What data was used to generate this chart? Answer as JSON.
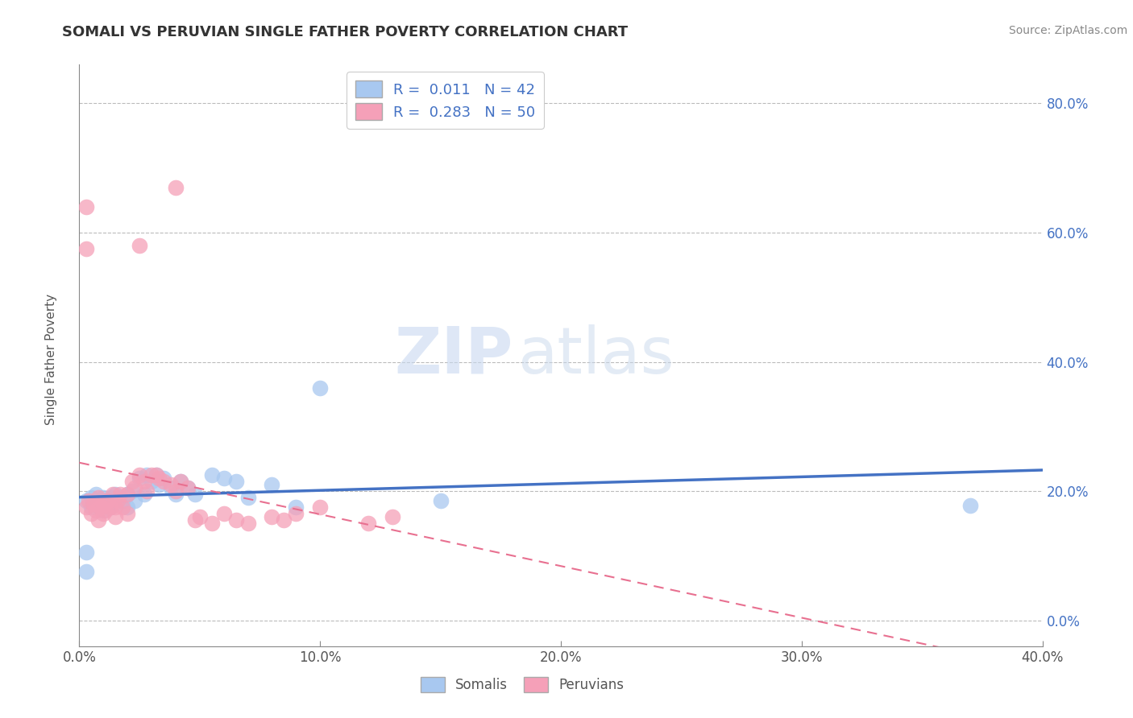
{
  "title": "SOMALI VS PERUVIAN SINGLE FATHER POVERTY CORRELATION CHART",
  "source": "Source: ZipAtlas.com",
  "ylabel": "Single Father Poverty",
  "xlim": [
    0.0,
    0.4
  ],
  "ylim": [
    -0.04,
    0.86
  ],
  "ytick_values": [
    0.0,
    0.2,
    0.4,
    0.6,
    0.8
  ],
  "ytick_labels": [
    "0.0%",
    "20.0%",
    "40.0%",
    "60.0%",
    "80.0%"
  ],
  "xtick_values": [
    0.0,
    0.1,
    0.2,
    0.3,
    0.4
  ],
  "xtick_labels": [
    "0.0%",
    "10.0%",
    "20.0%",
    "30.0%",
    "40.0%"
  ],
  "somali_R": "0.011",
  "somali_N": "42",
  "peruvian_R": "0.283",
  "peruvian_N": "50",
  "somali_color": "#a8c8f0",
  "peruvian_color": "#f5a0b8",
  "somali_line_color": "#4472c4",
  "peruvian_line_color": "#e87090",
  "grid_color": "#bbbbbb",
  "background_color": "#ffffff",
  "watermark_zip": "ZIP",
  "watermark_atlas": "atlas",
  "ytick_color": "#4472c4",
  "xtick_color": "#555555",
  "somali_scatter": [
    [
      0.003,
      0.185
    ],
    [
      0.005,
      0.19
    ],
    [
      0.005,
      0.175
    ],
    [
      0.007,
      0.195
    ],
    [
      0.008,
      0.18
    ],
    [
      0.009,
      0.185
    ],
    [
      0.01,
      0.19
    ],
    [
      0.01,
      0.17
    ],
    [
      0.012,
      0.185
    ],
    [
      0.013,
      0.19
    ],
    [
      0.013,
      0.175
    ],
    [
      0.015,
      0.195
    ],
    [
      0.015,
      0.18
    ],
    [
      0.017,
      0.19
    ],
    [
      0.018,
      0.185
    ],
    [
      0.02,
      0.195
    ],
    [
      0.02,
      0.175
    ],
    [
      0.022,
      0.2
    ],
    [
      0.023,
      0.185
    ],
    [
      0.025,
      0.22
    ],
    [
      0.027,
      0.195
    ],
    [
      0.028,
      0.225
    ],
    [
      0.03,
      0.215
    ],
    [
      0.032,
      0.225
    ],
    [
      0.033,
      0.21
    ],
    [
      0.035,
      0.22
    ],
    [
      0.038,
      0.205
    ],
    [
      0.04,
      0.195
    ],
    [
      0.042,
      0.215
    ],
    [
      0.045,
      0.205
    ],
    [
      0.048,
      0.195
    ],
    [
      0.055,
      0.225
    ],
    [
      0.06,
      0.22
    ],
    [
      0.065,
      0.215
    ],
    [
      0.07,
      0.19
    ],
    [
      0.09,
      0.175
    ],
    [
      0.1,
      0.36
    ],
    [
      0.15,
      0.185
    ],
    [
      0.003,
      0.105
    ],
    [
      0.003,
      0.075
    ],
    [
      0.37,
      0.178
    ],
    [
      0.08,
      0.21
    ]
  ],
  "peruvian_scatter": [
    [
      0.003,
      0.175
    ],
    [
      0.004,
      0.185
    ],
    [
      0.005,
      0.165
    ],
    [
      0.006,
      0.18
    ],
    [
      0.007,
      0.17
    ],
    [
      0.008,
      0.19
    ],
    [
      0.008,
      0.155
    ],
    [
      0.009,
      0.175
    ],
    [
      0.01,
      0.165
    ],
    [
      0.01,
      0.18
    ],
    [
      0.011,
      0.17
    ],
    [
      0.012,
      0.185
    ],
    [
      0.013,
      0.175
    ],
    [
      0.014,
      0.195
    ],
    [
      0.015,
      0.175
    ],
    [
      0.015,
      0.16
    ],
    [
      0.016,
      0.185
    ],
    [
      0.017,
      0.195
    ],
    [
      0.018,
      0.175
    ],
    [
      0.02,
      0.195
    ],
    [
      0.02,
      0.165
    ],
    [
      0.022,
      0.215
    ],
    [
      0.023,
      0.205
    ],
    [
      0.025,
      0.225
    ],
    [
      0.027,
      0.215
    ],
    [
      0.028,
      0.2
    ],
    [
      0.03,
      0.225
    ],
    [
      0.032,
      0.225
    ],
    [
      0.033,
      0.22
    ],
    [
      0.035,
      0.215
    ],
    [
      0.038,
      0.21
    ],
    [
      0.04,
      0.2
    ],
    [
      0.042,
      0.215
    ],
    [
      0.045,
      0.205
    ],
    [
      0.048,
      0.155
    ],
    [
      0.05,
      0.16
    ],
    [
      0.055,
      0.15
    ],
    [
      0.06,
      0.165
    ],
    [
      0.065,
      0.155
    ],
    [
      0.07,
      0.15
    ],
    [
      0.08,
      0.16
    ],
    [
      0.085,
      0.155
    ],
    [
      0.09,
      0.165
    ],
    [
      0.1,
      0.175
    ],
    [
      0.003,
      0.64
    ],
    [
      0.04,
      0.67
    ],
    [
      0.003,
      0.575
    ],
    [
      0.12,
      0.15
    ],
    [
      0.13,
      0.16
    ],
    [
      0.025,
      0.58
    ]
  ]
}
